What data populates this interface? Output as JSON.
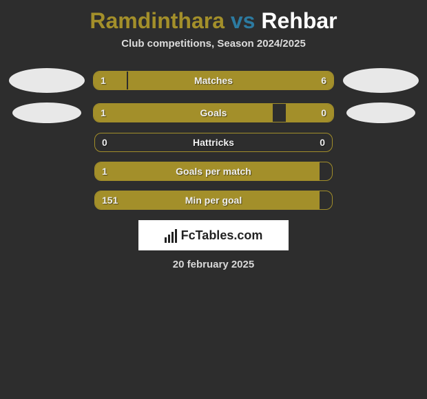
{
  "player1": "Ramdinthara",
  "player2": "Rehbar",
  "vs_text": "vs",
  "subtitle": "Club competitions, Season 2024/2025",
  "accent_color": "#a38f2a",
  "bg_color": "#2d2d2d",
  "stats": [
    {
      "label": "Matches",
      "left_val": "1",
      "right_val": "6",
      "left_pct": 14,
      "right_pct": 86,
      "show_ovals": true,
      "oval_size": "large"
    },
    {
      "label": "Goals",
      "left_val": "1",
      "right_val": "0",
      "left_pct": 75,
      "right_pct": 20,
      "show_ovals": true,
      "oval_size": "small"
    },
    {
      "label": "Hattricks",
      "left_val": "0",
      "right_val": "0",
      "left_pct": 0,
      "right_pct": 0,
      "show_ovals": false
    },
    {
      "label": "Goals per match",
      "left_val": "1",
      "right_val": "",
      "left_pct": 95,
      "right_pct": 0,
      "show_ovals": false
    },
    {
      "label": "Min per goal",
      "left_val": "151",
      "right_val": "",
      "left_pct": 95,
      "right_pct": 0,
      "show_ovals": false
    }
  ],
  "logo_text": "FcTables.com",
  "date_text": "20 february 2025"
}
